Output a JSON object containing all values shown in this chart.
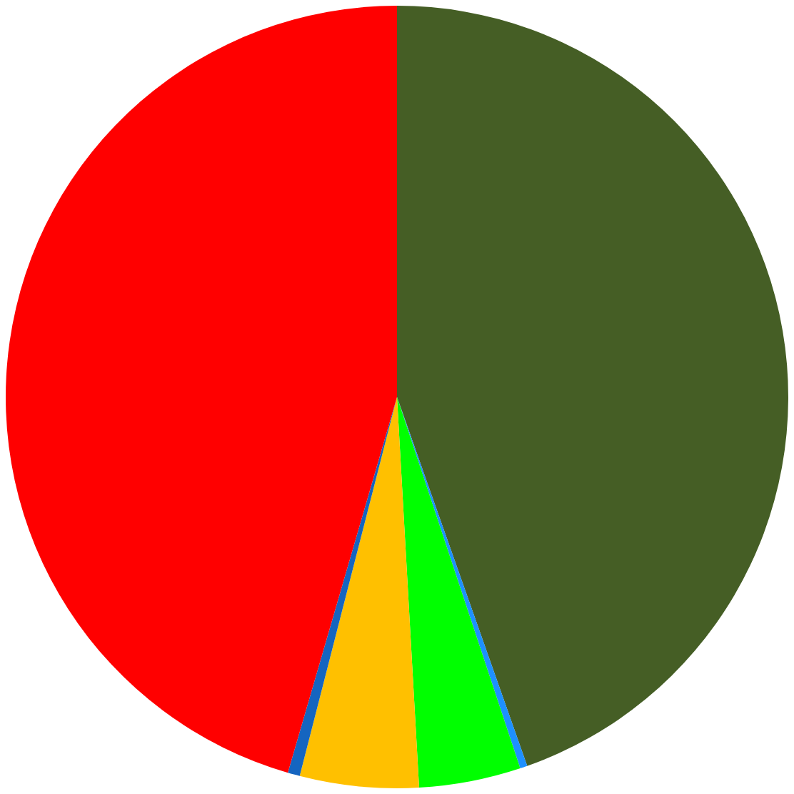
{
  "chart_data": {
    "type": "pie",
    "categories": [
      null,
      null,
      null,
      null,
      null,
      null
    ],
    "values": [
      44.6,
      0.3,
      4.2,
      4.9,
      0.5,
      45.5
    ],
    "colors": [
      "#455e25",
      "#1e90ff",
      "#00ff00",
      "#ffc000",
      "#1565c0",
      "#ff0000"
    ],
    "legend": false
  }
}
